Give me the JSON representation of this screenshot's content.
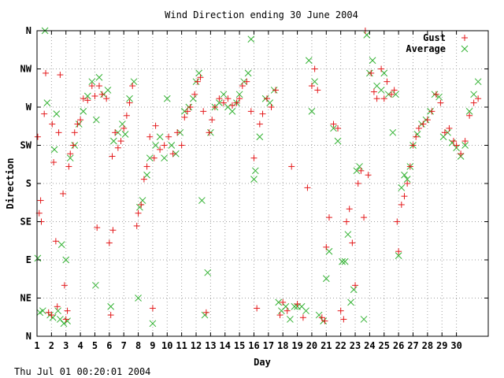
{
  "footer_timestamp": "Thu Jul 01 00:20:01 2004",
  "colors": {
    "gust": "#e41a1c",
    "average": "#33b233",
    "grid": "#a0a0a0",
    "axis": "#000000"
  },
  "chart_data": {
    "type": "scatter",
    "title": "Wind Direction ending 30 June 2004",
    "xlabel": "Day",
    "ylabel": "Direction",
    "xlim": [
      1,
      32.2
    ],
    "ylim": [
      0,
      360
    ],
    "x_ticks": [
      {
        "v": 1,
        "label": "1"
      },
      {
        "v": 2,
        "label": "2"
      },
      {
        "v": 3,
        "label": "3"
      },
      {
        "v": 4,
        "label": "4"
      },
      {
        "v": 5,
        "label": "5"
      },
      {
        "v": 6,
        "label": "6"
      },
      {
        "v": 7,
        "label": "7"
      },
      {
        "v": 8,
        "label": "8"
      },
      {
        "v": 9,
        "label": "9"
      },
      {
        "v": 10,
        "label": "10"
      },
      {
        "v": 11,
        "label": "11"
      },
      {
        "v": 12,
        "label": "12"
      },
      {
        "v": 13,
        "label": "13"
      },
      {
        "v": 14,
        "label": "14"
      },
      {
        "v": 15,
        "label": "15"
      },
      {
        "v": 16,
        "label": "16"
      },
      {
        "v": 17,
        "label": "17"
      },
      {
        "v": 18,
        "label": "18"
      },
      {
        "v": 19,
        "label": "19"
      },
      {
        "v": 20,
        "label": "20"
      },
      {
        "v": 21,
        "label": "21"
      },
      {
        "v": 22,
        "label": "22"
      },
      {
        "v": 23,
        "label": "23"
      },
      {
        "v": 24,
        "label": "24"
      },
      {
        "v": 25,
        "label": "25"
      },
      {
        "v": 26,
        "label": "26"
      },
      {
        "v": 27,
        "label": "27"
      },
      {
        "v": 28,
        "label": "28"
      },
      {
        "v": 29,
        "label": "29"
      },
      {
        "v": 30,
        "label": "30"
      }
    ],
    "y_ticks": [
      {
        "v": 0,
        "label": "N"
      },
      {
        "v": 45,
        "label": "NE"
      },
      {
        "v": 90,
        "label": "E"
      },
      {
        "v": 135,
        "label": "SE"
      },
      {
        "v": 180,
        "label": "S"
      },
      {
        "v": 225,
        "label": "SW"
      },
      {
        "v": 270,
        "label": "W"
      },
      {
        "v": 315,
        "label": "NW"
      },
      {
        "v": 360,
        "label": "N"
      }
    ],
    "grid": true,
    "legend_position": "top-right",
    "series": [
      {
        "name": "Gust",
        "marker": "+",
        "color": "#e41a1c",
        "points": [
          [
            1.05,
            235
          ],
          [
            1.15,
            145
          ],
          [
            1.25,
            160
          ],
          [
            1.3,
            135
          ],
          [
            1.5,
            262
          ],
          [
            1.6,
            310
          ],
          [
            1.8,
            28
          ],
          [
            2.0,
            25
          ],
          [
            2.05,
            250
          ],
          [
            2.15,
            205
          ],
          [
            2.3,
            112
          ],
          [
            2.4,
            35
          ],
          [
            2.5,
            240
          ],
          [
            2.6,
            308
          ],
          [
            2.8,
            168
          ],
          [
            2.9,
            60
          ],
          [
            3.0,
            20
          ],
          [
            3.1,
            30
          ],
          [
            3.2,
            200
          ],
          [
            3.3,
            215
          ],
          [
            3.5,
            225
          ],
          [
            3.6,
            240
          ],
          [
            3.8,
            250
          ],
          [
            4.0,
            255
          ],
          [
            4.2,
            280
          ],
          [
            4.5,
            278
          ],
          [
            4.8,
            295
          ],
          [
            5.0,
            283
          ],
          [
            5.15,
            128
          ],
          [
            5.3,
            295
          ],
          [
            5.5,
            285
          ],
          [
            5.8,
            280
          ],
          [
            6.0,
            110
          ],
          [
            6.1,
            25
          ],
          [
            6.2,
            212
          ],
          [
            6.25,
            125
          ],
          [
            6.4,
            240
          ],
          [
            6.6,
            222
          ],
          [
            6.8,
            230
          ],
          [
            7.0,
            245
          ],
          [
            7.2,
            260
          ],
          [
            7.4,
            275
          ],
          [
            7.6,
            295
          ],
          [
            7.9,
            130
          ],
          [
            8.0,
            145
          ],
          [
            8.2,
            155
          ],
          [
            8.4,
            185
          ],
          [
            8.6,
            200
          ],
          [
            8.8,
            235
          ],
          [
            9.0,
            33
          ],
          [
            9.1,
            210
          ],
          [
            9.2,
            248
          ],
          [
            9.5,
            220
          ],
          [
            9.8,
            225
          ],
          [
            10.1,
            235
          ],
          [
            10.4,
            215
          ],
          [
            10.7,
            240
          ],
          [
            11.0,
            225
          ],
          [
            11.2,
            258
          ],
          [
            11.4,
            265
          ],
          [
            11.6,
            270
          ],
          [
            11.9,
            285
          ],
          [
            12.1,
            300
          ],
          [
            12.3,
            305
          ],
          [
            12.5,
            265
          ],
          [
            12.7,
            28
          ],
          [
            12.9,
            240
          ],
          [
            13.1,
            255
          ],
          [
            13.3,
            270
          ],
          [
            13.6,
            280
          ],
          [
            13.9,
            275
          ],
          [
            14.2,
            280
          ],
          [
            14.5,
            272
          ],
          [
            14.8,
            275
          ],
          [
            15.0,
            280
          ],
          [
            15.2,
            295
          ],
          [
            15.5,
            300
          ],
          [
            15.8,
            265
          ],
          [
            16.0,
            210
          ],
          [
            16.2,
            33
          ],
          [
            16.4,
            250
          ],
          [
            16.6,
            262
          ],
          [
            16.9,
            280
          ],
          [
            17.2,
            270
          ],
          [
            17.5,
            290
          ],
          [
            17.8,
            25
          ],
          [
            18.0,
            40
          ],
          [
            18.3,
            30
          ],
          [
            18.6,
            200
          ],
          [
            19.0,
            38
          ],
          [
            19.4,
            22
          ],
          [
            19.7,
            175
          ],
          [
            20.0,
            295
          ],
          [
            20.2,
            315
          ],
          [
            20.4,
            290
          ],
          [
            20.7,
            22
          ],
          [
            20.9,
            18
          ],
          [
            21.0,
            105
          ],
          [
            21.2,
            140
          ],
          [
            21.5,
            250
          ],
          [
            21.8,
            245
          ],
          [
            22.0,
            30
          ],
          [
            22.2,
            20
          ],
          [
            22.4,
            135
          ],
          [
            22.6,
            150
          ],
          [
            22.8,
            110
          ],
          [
            23.0,
            60
          ],
          [
            23.2,
            180
          ],
          [
            23.4,
            195
          ],
          [
            23.6,
            140
          ],
          [
            23.7,
            360
          ],
          [
            23.9,
            190
          ],
          [
            24.1,
            310
          ],
          [
            24.3,
            288
          ],
          [
            24.5,
            280
          ],
          [
            24.8,
            315
          ],
          [
            25.0,
            280
          ],
          [
            25.2,
            300
          ],
          [
            25.5,
            285
          ],
          [
            25.7,
            290
          ],
          [
            25.9,
            135
          ],
          [
            26.0,
            100
          ],
          [
            26.2,
            155
          ],
          [
            26.4,
            165
          ],
          [
            26.6,
            180
          ],
          [
            26.8,
            200
          ],
          [
            27.0,
            225
          ],
          [
            27.2,
            235
          ],
          [
            27.4,
            245
          ],
          [
            27.7,
            250
          ],
          [
            28.0,
            255
          ],
          [
            28.3,
            265
          ],
          [
            28.6,
            285
          ],
          [
            28.9,
            275
          ],
          [
            29.2,
            240
          ],
          [
            29.5,
            245
          ],
          [
            29.8,
            230
          ],
          [
            30.0,
            225
          ],
          [
            30.3,
            215
          ],
          [
            30.6,
            230
          ],
          [
            30.9,
            260
          ],
          [
            31.2,
            275
          ],
          [
            31.5,
            280
          ]
        ]
      },
      {
        "name": "Average",
        "marker": "x",
        "color": "#33b233",
        "points": [
          [
            1.05,
            92
          ],
          [
            1.2,
            28
          ],
          [
            1.4,
            30
          ],
          [
            1.55,
            360
          ],
          [
            1.7,
            275
          ],
          [
            1.9,
            25
          ],
          [
            2.1,
            22
          ],
          [
            2.2,
            220
          ],
          [
            2.35,
            262
          ],
          [
            2.45,
            30
          ],
          [
            2.6,
            20
          ],
          [
            2.7,
            108
          ],
          [
            2.85,
            15
          ],
          [
            3.0,
            90
          ],
          [
            3.1,
            18
          ],
          [
            3.3,
            210
          ],
          [
            3.6,
            225
          ],
          [
            3.9,
            250
          ],
          [
            4.2,
            265
          ],
          [
            4.5,
            283
          ],
          [
            4.8,
            300
          ],
          [
            5.05,
            60
          ],
          [
            5.1,
            255
          ],
          [
            5.3,
            305
          ],
          [
            5.6,
            285
          ],
          [
            5.9,
            290
          ],
          [
            6.1,
            35
          ],
          [
            6.3,
            230
          ],
          [
            6.6,
            240
          ],
          [
            6.9,
            250
          ],
          [
            7.1,
            238
          ],
          [
            7.4,
            280
          ],
          [
            7.7,
            300
          ],
          [
            8.0,
            45
          ],
          [
            8.1,
            152
          ],
          [
            8.3,
            160
          ],
          [
            8.6,
            190
          ],
          [
            8.8,
            210
          ],
          [
            9.0,
            15
          ],
          [
            9.2,
            225
          ],
          [
            9.5,
            235
          ],
          [
            9.8,
            210
          ],
          [
            10.0,
            280
          ],
          [
            10.3,
            225
          ],
          [
            10.6,
            215
          ],
          [
            10.9,
            240
          ],
          [
            11.2,
            265
          ],
          [
            11.5,
            270
          ],
          [
            11.8,
            280
          ],
          [
            12.0,
            300
          ],
          [
            12.2,
            310
          ],
          [
            12.4,
            160
          ],
          [
            12.6,
            25
          ],
          [
            12.8,
            75
          ],
          [
            13.0,
            240
          ],
          [
            13.3,
            270
          ],
          [
            13.6,
            275
          ],
          [
            13.9,
            285
          ],
          [
            14.2,
            270
          ],
          [
            14.5,
            265
          ],
          [
            14.8,
            275
          ],
          [
            15.0,
            285
          ],
          [
            15.3,
            300
          ],
          [
            15.6,
            310
          ],
          [
            15.8,
            350
          ],
          [
            16.0,
            185
          ],
          [
            16.1,
            195
          ],
          [
            16.4,
            235
          ],
          [
            16.8,
            280
          ],
          [
            17.1,
            275
          ],
          [
            17.4,
            290
          ],
          [
            17.7,
            40
          ],
          [
            17.9,
            30
          ],
          [
            18.2,
            35
          ],
          [
            18.5,
            20
          ],
          [
            18.8,
            35
          ],
          [
            19.0,
            35
          ],
          [
            19.3,
            35
          ],
          [
            19.6,
            30
          ],
          [
            19.8,
            325
          ],
          [
            20.0,
            265
          ],
          [
            20.2,
            300
          ],
          [
            20.5,
            25
          ],
          [
            20.8,
            18
          ],
          [
            21.0,
            68
          ],
          [
            21.2,
            100
          ],
          [
            21.5,
            245
          ],
          [
            21.8,
            230
          ],
          [
            22.1,
            88
          ],
          [
            22.3,
            88
          ],
          [
            22.5,
            120
          ],
          [
            22.7,
            40
          ],
          [
            22.9,
            55
          ],
          [
            23.1,
            195
          ],
          [
            23.3,
            200
          ],
          [
            23.6,
            20
          ],
          [
            23.8,
            355
          ],
          [
            24.0,
            310
          ],
          [
            24.2,
            325
          ],
          [
            24.5,
            295
          ],
          [
            24.8,
            290
          ],
          [
            25.0,
            310
          ],
          [
            25.3,
            285
          ],
          [
            25.6,
            240
          ],
          [
            25.8,
            285
          ],
          [
            26.0,
            95
          ],
          [
            26.2,
            175
          ],
          [
            26.4,
            190
          ],
          [
            26.6,
            185
          ],
          [
            26.8,
            200
          ],
          [
            27.0,
            225
          ],
          [
            27.3,
            238
          ],
          [
            27.6,
            250
          ],
          [
            27.9,
            255
          ],
          [
            28.2,
            265
          ],
          [
            28.5,
            285
          ],
          [
            28.8,
            282
          ],
          [
            29.1,
            235
          ],
          [
            29.4,
            240
          ],
          [
            29.7,
            228
          ],
          [
            30.0,
            222
          ],
          [
            30.3,
            212
          ],
          [
            30.6,
            225
          ],
          [
            30.9,
            265
          ],
          [
            31.2,
            285
          ],
          [
            31.5,
            300
          ]
        ]
      }
    ]
  }
}
